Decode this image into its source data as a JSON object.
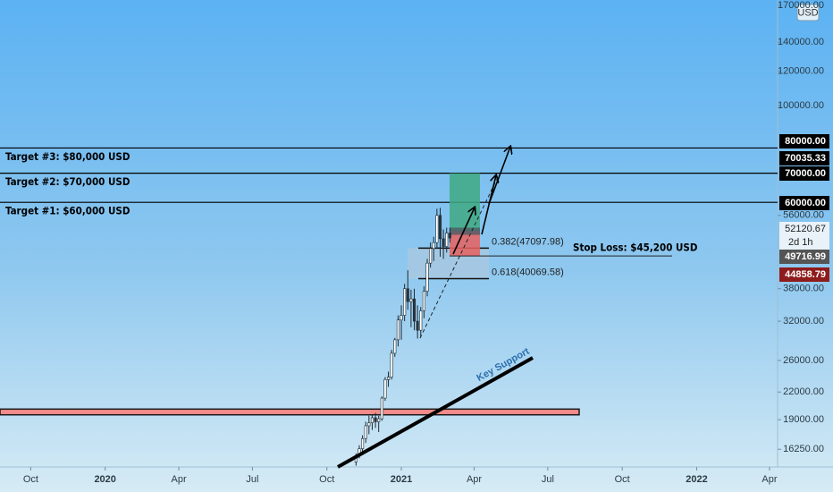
{
  "chart_data": {
    "type": "candlestick",
    "currency": "USD",
    "interval": "2d 1h",
    "ylim": [
      14800,
      175000
    ],
    "log_scale": true,
    "grid": false,
    "yticks": [
      {
        "value": 16250,
        "label": "16250.00"
      },
      {
        "value": 19000,
        "label": "19000.00"
      },
      {
        "value": 22000,
        "label": "22000.00"
      },
      {
        "value": 26000,
        "label": "26000.00"
      },
      {
        "value": 32000,
        "label": "32000.00"
      },
      {
        "value": 38000,
        "label": "38000.00"
      },
      {
        "value": 56000,
        "label": "56000.00"
      },
      {
        "value": 100000,
        "label": "100000.00"
      },
      {
        "value": 120000,
        "label": "120000.00"
      },
      {
        "value": 140000,
        "label": "140000.00"
      },
      {
        "value": 170000,
        "label": "170000.00"
      }
    ],
    "xlim": [
      -496,
      465
    ],
    "xticks": [
      {
        "value": -458,
        "label": "Oct"
      },
      {
        "value": -366,
        "label": "2020"
      },
      {
        "value": -275,
        "label": "Apr"
      },
      {
        "value": -184,
        "label": "Jul"
      },
      {
        "value": -92,
        "label": "Oct"
      },
      {
        "value": 0,
        "label": "2021"
      },
      {
        "value": 90,
        "label": "Apr"
      },
      {
        "value": 181,
        "label": "Jul"
      },
      {
        "value": 273,
        "label": "Oct"
      },
      {
        "value": 365,
        "label": "2022"
      },
      {
        "value": 455,
        "label": "Apr"
      }
    ],
    "x": [
      -56,
      -52,
      -48,
      -44,
      -40,
      -36,
      -32,
      -28,
      -24,
      -20,
      -16,
      -12,
      -8,
      -4,
      0,
      4,
      8,
      12,
      16,
      20,
      24,
      28,
      32,
      36,
      40,
      44,
      48,
      52,
      56,
      60
    ],
    "open": [
      15200,
      15700,
      16300,
      17200,
      18400,
      18700,
      19200,
      18800,
      19100,
      21300,
      23500,
      23800,
      27000,
      29000,
      32200,
      33000,
      38000,
      35500,
      36000,
      32000,
      30500,
      33800,
      37500,
      43500,
      47000,
      48500,
      56000,
      49500,
      47500,
      51000
    ],
    "high": [
      15900,
      16600,
      17500,
      18800,
      19400,
      19500,
      19700,
      19400,
      21500,
      23800,
      24500,
      27500,
      29300,
      33000,
      34800,
      39000,
      41900,
      37800,
      38000,
      34800,
      34500,
      38500,
      44500,
      48500,
      50000,
      58000,
      58300,
      52000,
      52500,
      52500
    ],
    "low": [
      14900,
      15500,
      16000,
      16800,
      17600,
      18000,
      18200,
      17800,
      18900,
      21000,
      22600,
      23500,
      26500,
      28000,
      29000,
      32000,
      34000,
      31000,
      30500,
      29200,
      29500,
      32500,
      36500,
      42500,
      44000,
      47000,
      45000,
      44500,
      46000,
      48500
    ],
    "close": [
      15700,
      16300,
      17200,
      18400,
      18700,
      19200,
      18800,
      19100,
      21300,
      23500,
      23800,
      27000,
      29000,
      32200,
      33000,
      38000,
      35500,
      36000,
      32000,
      30500,
      33800,
      37500,
      43500,
      47000,
      48500,
      56000,
      49500,
      47500,
      51000,
      49700
    ],
    "levels": [
      {
        "label": "Target #3: $80,000 USD",
        "value": 80000
      },
      {
        "label": "Target #2: $70,000 USD",
        "value": 70000
      },
      {
        "label": "Target #1: $60,000 USD",
        "value": 60000
      }
    ],
    "stop_loss": {
      "label": "Stop Loss: $45,200 USD",
      "value": 45200
    },
    "fib": [
      {
        "label": "0.382(47097.98)",
        "value": 47097.98
      },
      {
        "label": "0.618(40069.58)",
        "value": 40069.58
      }
    ],
    "position": {
      "target": 70000,
      "entry": 51500,
      "stop": 45200
    },
    "support_zone": [
      19500,
      20100
    ],
    "support_label": "Key Support",
    "price_tags": [
      {
        "label": "80000.00",
        "value": 80000,
        "color": "#000000"
      },
      {
        "label": "70035.33",
        "value": 70035.33,
        "color": "#000000"
      },
      {
        "label": "70000.00",
        "value": 70000,
        "color": "#000000"
      },
      {
        "label": "60000.00",
        "value": 60000,
        "color": "#000000"
      },
      {
        "label": "52120.67",
        "value": 52120.67,
        "color": "#e8f2f8"
      },
      {
        "label": "49716.99",
        "value": 49716.99,
        "color": "#555555"
      },
      {
        "label": "44858.79",
        "value": 44858.79,
        "color": "#8e1c1c"
      }
    ]
  }
}
